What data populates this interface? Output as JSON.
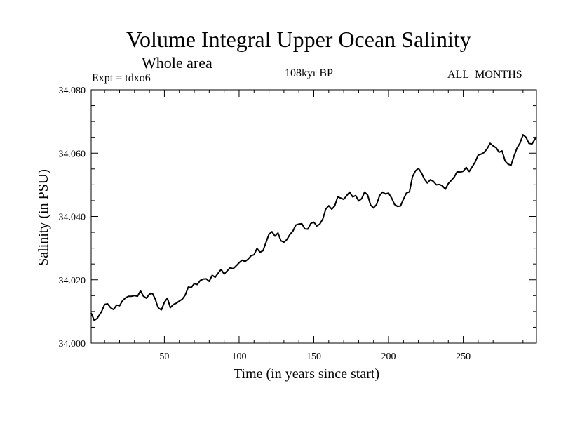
{
  "chart_data": {
    "type": "line",
    "title": "Volume Integral Upper Ocean Salinity",
    "subtitle": "Whole area",
    "annotations": {
      "left": "Expt = tdxo6",
      "center": "108kyr BP",
      "right": "ALL_MONTHS"
    },
    "xlabel": "Time (in years since start)",
    "ylabel": "Salinity (in PSU)",
    "xlim": [
      1,
      299
    ],
    "ylim": [
      34.0,
      34.08
    ],
    "xticks": [
      50,
      100,
      150,
      200,
      250
    ],
    "xtick_labels": [
      "50",
      "100",
      "150",
      "200",
      "250"
    ],
    "yticks": [
      34.0,
      34.02,
      34.04,
      34.06,
      34.08
    ],
    "ytick_labels": [
      "34.000",
      "34.020",
      "34.040",
      "34.060",
      "34.080"
    ],
    "line_color": "#000000",
    "grid": false,
    "series": [
      {
        "x": [
          1,
          3,
          5,
          8,
          10,
          12,
          14,
          16,
          18,
          20,
          22,
          24,
          26,
          28,
          30,
          32,
          34,
          36,
          38,
          40,
          42,
          44,
          45,
          46,
          48,
          50,
          52,
          54,
          56,
          58,
          60,
          62,
          64,
          66,
          68,
          70,
          72,
          74,
          76,
          78,
          80,
          82,
          84,
          86,
          88,
          90,
          92,
          94,
          96,
          98,
          100,
          102,
          104,
          106,
          108,
          110,
          112,
          114,
          116,
          118,
          120,
          122,
          124,
          126,
          128,
          130,
          132,
          134,
          136,
          138,
          140,
          142,
          144,
          146,
          148,
          150,
          152,
          154,
          156,
          158,
          160,
          162,
          164,
          166,
          168,
          170,
          172,
          174,
          176,
          178,
          180,
          182,
          184,
          186,
          188,
          190,
          192,
          194,
          196,
          198,
          200,
          202,
          204,
          206,
          208,
          210,
          212,
          214,
          216,
          218,
          220,
          222,
          224,
          226,
          228,
          230,
          232,
          234,
          236,
          238,
          240,
          242,
          244,
          246,
          248,
          250,
          252,
          254,
          256,
          258,
          260,
          262,
          264,
          266,
          268,
          270,
          272,
          274,
          276,
          278,
          280,
          282,
          284,
          286,
          288,
          290,
          292,
          294,
          296,
          299
        ],
        "y": [
          34.0095,
          34.0072,
          34.0078,
          34.01,
          34.0122,
          34.0124,
          34.0112,
          34.0106,
          34.012,
          34.0118,
          34.0134,
          34.0143,
          34.0148,
          34.0148,
          34.015,
          34.0148,
          34.0165,
          34.0148,
          34.0142,
          34.0155,
          34.0157,
          34.0138,
          34.0122,
          34.0111,
          34.0105,
          34.0129,
          34.0142,
          34.0112,
          34.0122,
          34.0126,
          34.0133,
          34.0139,
          34.0152,
          34.0177,
          34.0176,
          34.0188,
          34.0185,
          34.0198,
          34.0202,
          34.0203,
          34.0195,
          34.0214,
          34.0208,
          34.0221,
          34.0233,
          34.0218,
          34.0228,
          34.0238,
          34.0235,
          34.0244,
          34.0254,
          34.0262,
          34.0258,
          34.0265,
          34.0276,
          34.0279,
          34.0299,
          34.0287,
          34.0292,
          34.0318,
          34.0344,
          34.0352,
          34.0338,
          34.0348,
          34.0323,
          34.0319,
          34.0327,
          34.0343,
          34.0354,
          34.0373,
          34.0376,
          34.0377,
          34.0361,
          34.036,
          34.0378,
          34.0382,
          34.037,
          34.0376,
          34.0392,
          34.0423,
          34.0434,
          34.0423,
          34.0433,
          34.0462,
          34.0458,
          34.0454,
          34.0466,
          34.0477,
          34.0462,
          34.0466,
          34.0449,
          34.0456,
          34.0477,
          34.0468,
          34.0436,
          34.0427,
          34.0438,
          34.0466,
          34.0477,
          34.0471,
          34.0474,
          34.0459,
          34.0438,
          34.0432,
          34.0433,
          34.0455,
          34.0474,
          34.0478,
          34.0525,
          34.0544,
          34.0552,
          34.0538,
          34.0518,
          34.0506,
          34.0516,
          34.0511,
          34.05,
          34.0501,
          34.0497,
          34.0486,
          34.0504,
          34.0514,
          34.0525,
          34.0542,
          34.054,
          34.0543,
          34.0555,
          34.0542,
          34.0557,
          34.0572,
          34.0594,
          34.0597,
          34.0602,
          34.0614,
          34.0631,
          34.0623,
          34.0617,
          34.0603,
          34.0607,
          34.0575,
          34.0565,
          34.0562,
          34.0591,
          34.0616,
          34.0632,
          34.0658,
          34.065,
          34.0631,
          34.0629,
          34.0652
        ]
      }
    ]
  }
}
